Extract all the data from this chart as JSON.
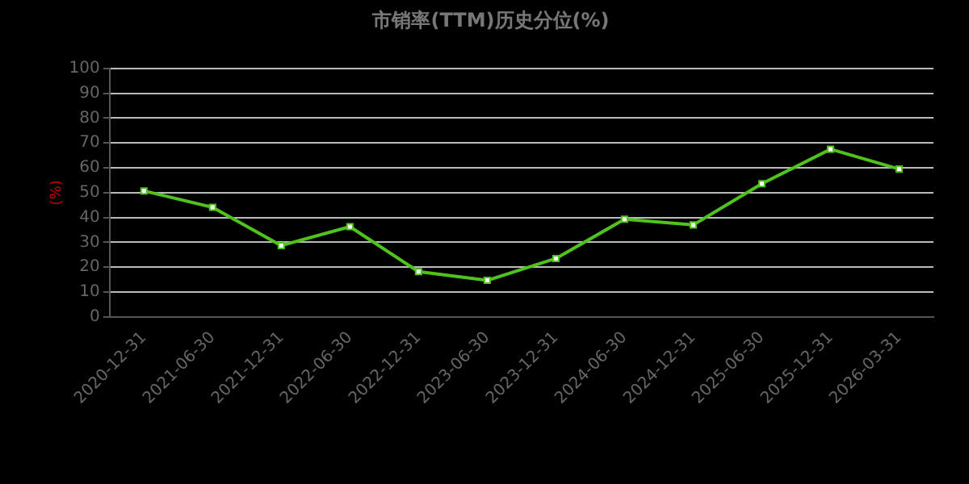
{
  "chart_data": {
    "type": "line",
    "title": "市销率(TTM)历史分位(%)",
    "ylabel": "(%)",
    "categories": [
      "2020-12-31",
      "2021-06-30",
      "2021-12-31",
      "2022-06-30",
      "2022-12-31",
      "2023-06-30",
      "2023-12-31",
      "2024-06-30",
      "2024-12-31",
      "2025-06-30",
      "2025-12-31",
      "2026-03-31"
    ],
    "series": [
      {
        "color": "#4fc31c",
        "values": [
          50.7,
          44.1,
          28.7,
          36.3,
          18.2,
          14.7,
          23.5,
          39.3,
          37.0,
          53.6,
          67.5,
          59.5
        ]
      }
    ],
    "ylim": [
      0,
      100
    ],
    "yticks": [
      0,
      10,
      20,
      30,
      40,
      50,
      60,
      70,
      80,
      90,
      100
    ],
    "grid": "y",
    "legend": false,
    "marker": "square",
    "line_style": "solid"
  }
}
